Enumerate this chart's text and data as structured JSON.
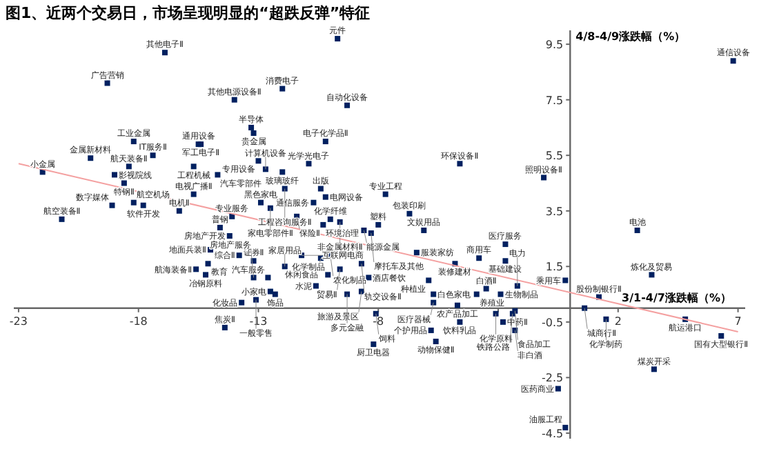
{
  "chart_data": {
    "type": "scatter",
    "title": "图1、近两个交易日，市场呈现明显的“超跌反弹”特征",
    "xlabel": "3/1-4/7涨跌幅（%）",
    "ylabel": "4/8-4/9涨跌幅（%）",
    "xlim": [
      -23.2,
      7.3
    ],
    "ylim": [
      -4.7,
      10.0
    ],
    "xticks": [
      -23,
      -18,
      -13,
      -8,
      {
        "value": -3,
        "label": null
      },
      2,
      7
    ],
    "yticks": [
      -4.5,
      -2.5,
      -0.5,
      1.5,
      3.5,
      5.5,
      7.5,
      9.5
    ],
    "series": [
      {
        "type": "scatter",
        "marker": "square",
        "color": "#002060",
        "x": [
          -16.9,
          -19.3,
          -14.0,
          -18.2,
          -15.5,
          -15.4,
          -20.0,
          -17.4,
          -18.4,
          -22.0,
          -19.0,
          -15.7,
          -14.7,
          -18.6,
          -15.7,
          -18.2,
          -17.8,
          -16.3,
          -21.2,
          -19.1,
          -14.1,
          -14.6,
          -13.3,
          -13.2,
          -9.7,
          -12.0,
          -9.3,
          -10.2,
          -4.6,
          -10.9,
          -12.7,
          -13.0,
          -12.0,
          -7.7,
          -10.2,
          -10.4,
          -10.7,
          -11.9,
          -12.9,
          -12.5,
          -6.7,
          -10.0,
          -11.4,
          -9.6,
          -8.0,
          -6.1,
          -10.3,
          -8.6,
          -8.3,
          -6.4,
          -3.8,
          -4.8,
          -10.0,
          -10.4,
          -8.7,
          -9.6,
          -10.1,
          -8.4,
          -10.6,
          -8.7,
          -9.3,
          -12.6,
          -12.5,
          -12.3,
          -13.1,
          -13.2,
          -11.9,
          -11.2,
          -5.9,
          -5.7,
          -3.9,
          -3.5,
          -2.9,
          -4.7,
          -5.7,
          -4.6,
          -3.1,
          -2.8,
          -8.1,
          -5.8,
          -5.6,
          -8.2,
          -14.2,
          -15.0,
          -13.8,
          -15.1,
          -15.6,
          -15.2,
          -13.2,
          -13.7,
          -14.4,
          6.8,
          -1.1,
          2.8,
          -2.7,
          -2.7,
          3.4,
          -0.2,
          1.2,
          -2.2,
          -2.3,
          0.6,
          1.5,
          4.8,
          6.3,
          3.5,
          -0.5,
          -0.2,
          -2.4,
          -2.3
        ],
        "values": [
          9.2,
          8.1,
          7.5,
          6.0,
          5.9,
          5.9,
          5.4,
          5.5,
          5.1,
          4.9,
          4.8,
          5.1,
          4.8,
          4.5,
          4.1,
          3.8,
          3.7,
          3.5,
          3.2,
          3.7,
          3.3,
          2.9,
          6.5,
          6.3,
          9.7,
          7.9,
          7.3,
          6.0,
          5.2,
          5.2,
          5.0,
          5.3,
          4.9,
          4.1,
          4.0,
          4.3,
          3.8,
          4.3,
          3.8,
          3.6,
          3.4,
          3.2,
          3.3,
          3.1,
          3.0,
          2.8,
          3.0,
          2.8,
          2.7,
          2.0,
          1.8,
          1.6,
          1.9,
          1.8,
          1.6,
          1.4,
          1.2,
          1.1,
          0.8,
          0.6,
          0.5,
          1.1,
          0.6,
          0.5,
          0.3,
          1.7,
          1.5,
          1.9,
          1.0,
          0.5,
          0.5,
          0.7,
          0.5,
          0.1,
          0.2,
          -0.5,
          -0.2,
          -0.5,
          -0.2,
          -0.8,
          -1.2,
          -1.3,
          2.6,
          2.1,
          1.9,
          1.6,
          1.4,
          1.2,
          1.1,
          0.2,
          -0.7,
          8.9,
          4.7,
          2.8,
          2.3,
          1.7,
          1.2,
          1.0,
          0.4,
          0.8,
          -0.1,
          0.0,
          -0.4,
          -0.4,
          -1.0,
          -2.2,
          -2.9,
          -4.3,
          -0.2,
          -0.8
        ]
      },
      {
        "type": "line",
        "color": "#f4a0a0",
        "x": [
          -23,
          7
        ],
        "values": [
          5.2,
          -0.85
        ]
      }
    ],
    "annotations": [
      {
        "text": "其他电子Ⅱ",
        "x": -16.9,
        "y": 9.2
      },
      {
        "text": "广告营销",
        "x": -19.3,
        "y": 8.1
      },
      {
        "text": "其他电源设备Ⅱ",
        "x": -14.0,
        "y": 7.5
      },
      {
        "text": "工业金属",
        "x": -18.2,
        "y": 6.0
      },
      {
        "text": "通用设备",
        "x": -15.5,
        "y": 5.9
      },
      {
        "text": "军工电子Ⅱ",
        "x": -15.4,
        "y": 5.9
      },
      {
        "text": "金属新材料",
        "x": -20.0,
        "y": 5.4
      },
      {
        "text": "IT服务Ⅱ",
        "x": -17.4,
        "y": 5.5
      },
      {
        "text": "航天装备Ⅱ",
        "x": -18.4,
        "y": 5.1
      },
      {
        "text": "小金属",
        "x": -22.0,
        "y": 4.9
      },
      {
        "text": "影视院线",
        "x": -19.0,
        "y": 4.8
      },
      {
        "text": "工程机械",
        "x": -15.7,
        "y": 5.1
      },
      {
        "text": "汽车零部件",
        "x": -14.7,
        "y": 4.8
      },
      {
        "text": "特钢Ⅱ",
        "x": -18.6,
        "y": 4.5
      },
      {
        "text": "电视广播Ⅱ",
        "x": -15.7,
        "y": 4.1
      },
      {
        "text": "航空机场",
        "x": -18.2,
        "y": 3.8
      },
      {
        "text": "软件开发",
        "x": -17.8,
        "y": 3.7
      },
      {
        "text": "电机Ⅱ",
        "x": -16.3,
        "y": 3.5
      },
      {
        "text": "航空装备Ⅱ",
        "x": -21.2,
        "y": 3.2
      },
      {
        "text": "数字媒体",
        "x": -19.1,
        "y": 3.7
      },
      {
        "text": "专业服务",
        "x": -14.1,
        "y": 3.3
      },
      {
        "text": "普钢",
        "x": -14.6,
        "y": 2.9
      },
      {
        "text": "半导体",
        "x": -13.3,
        "y": 6.5
      },
      {
        "text": "贵金属",
        "x": -13.2,
        "y": 6.3
      },
      {
        "text": "元件",
        "x": -9.7,
        "y": 9.7
      },
      {
        "text": "消费电子",
        "x": -12.0,
        "y": 7.9
      },
      {
        "text": "自动化设备",
        "x": -9.3,
        "y": 7.3
      },
      {
        "text": "电子化学品Ⅱ",
        "x": -10.2,
        "y": 6.0
      },
      {
        "text": "环保设备Ⅱ",
        "x": -4.6,
        "y": 5.2
      },
      {
        "text": "光学光电子",
        "x": -10.9,
        "y": 5.2
      },
      {
        "text": "计算机设备",
        "x": -12.7,
        "y": 5.0
      },
      {
        "text": "专用设备",
        "x": -13.0,
        "y": 5.3
      },
      {
        "text": "玻璃玻纤",
        "x": -12.0,
        "y": 4.9
      },
      {
        "text": "专业工程",
        "x": -7.7,
        "y": 4.1
      },
      {
        "text": "电网设备",
        "x": -10.2,
        "y": 4.0
      },
      {
        "text": "出版",
        "x": -10.4,
        "y": 4.3
      },
      {
        "text": "通信服务",
        "x": -10.7,
        "y": 3.8
      },
      {
        "text": "工程咨询服务Ⅱ",
        "x": -11.9,
        "y": 4.3
      },
      {
        "text": "黑色家电",
        "x": -12.9,
        "y": 3.8
      },
      {
        "text": "家电零部件Ⅱ",
        "x": -12.5,
        "y": 3.6
      },
      {
        "text": "包装印刷",
        "x": -6.7,
        "y": 3.4
      },
      {
        "text": "化学纤维",
        "x": -10.0,
        "y": 3.2
      },
      {
        "text": "保险Ⅱ",
        "x": -11.4,
        "y": 3.3
      },
      {
        "text": "非金属材料Ⅱ",
        "x": -9.6,
        "y": 3.1
      },
      {
        "text": "塑料",
        "x": -8.0,
        "y": 3.0
      },
      {
        "text": "文娱用品",
        "x": -6.1,
        "y": 2.8
      },
      {
        "text": "环境治理",
        "x": -10.3,
        "y": 3.0
      },
      {
        "text": "能源金属",
        "x": -8.6,
        "y": 2.8
      },
      {
        "text": "摩托车及其他",
        "x": -8.3,
        "y": 2.7
      },
      {
        "text": "服装家纺",
        "x": -6.4,
        "y": 2.0
      },
      {
        "text": "商用车",
        "x": -3.8,
        "y": 1.8
      },
      {
        "text": "装修建材",
        "x": -4.8,
        "y": 1.6
      },
      {
        "text": "农化制品",
        "x": -10.0,
        "y": 1.9
      },
      {
        "text": "休闲食品",
        "x": -10.4,
        "y": 1.8
      },
      {
        "text": "轨交设备Ⅱ",
        "x": -8.7,
        "y": 1.6
      },
      {
        "text": "贸易Ⅱ",
        "x": -9.6,
        "y": 1.4
      },
      {
        "text": "化学制品",
        "x": -10.1,
        "y": 1.2
      },
      {
        "text": "酒店餐饮",
        "x": -8.4,
        "y": 1.1
      },
      {
        "text": "水泥",
        "x": -10.6,
        "y": 0.8
      },
      {
        "text": "旅游及景区",
        "x": -8.7,
        "y": 0.6
      },
      {
        "text": "多元金融",
        "x": -9.3,
        "y": 0.5
      },
      {
        "text": "汽车服务",
        "x": -12.6,
        "y": 1.1
      },
      {
        "text": "小家电",
        "x": -12.5,
        "y": 0.6
      },
      {
        "text": "饰品",
        "x": -12.3,
        "y": 0.5
      },
      {
        "text": "一般零售",
        "x": -13.1,
        "y": 0.3
      },
      {
        "text": "证券Ⅱ",
        "x": -13.2,
        "y": 1.7
      },
      {
        "text": "家居用品",
        "x": -11.9,
        "y": 1.5
      },
      {
        "text": "互联网电商",
        "x": -11.2,
        "y": 1.9
      },
      {
        "text": "种植业",
        "x": -5.9,
        "y": 1.0
      },
      {
        "text": "白色家电",
        "x": -5.7,
        "y": 0.5
      },
      {
        "text": "养殖业",
        "x": -3.9,
        "y": 0.5
      },
      {
        "text": "白酒Ⅱ",
        "x": -3.5,
        "y": 0.7
      },
      {
        "text": "生物制品",
        "x": -2.9,
        "y": 0.5
      },
      {
        "text": "农产品加工",
        "x": -4.7,
        "y": 0.1
      },
      {
        "text": "医疗器械",
        "x": -5.7,
        "y": 0.2
      },
      {
        "text": "饮料乳品",
        "x": -4.6,
        "y": -0.5
      },
      {
        "text": "化学原料",
        "x": -3.1,
        "y": -0.2
      },
      {
        "text": "中药Ⅱ",
        "x": -2.8,
        "y": -0.5
      },
      {
        "text": "饲料",
        "x": -8.1,
        "y": -0.2
      },
      {
        "text": "个护用品",
        "x": -5.8,
        "y": -0.8
      },
      {
        "text": "动物保健Ⅱ",
        "x": -5.6,
        "y": -1.2
      },
      {
        "text": "厨卫电器",
        "x": -8.2,
        "y": -1.3
      },
      {
        "text": "房地产开发",
        "x": -14.2,
        "y": 2.6
      },
      {
        "text": "地面兵装Ⅱ",
        "x": -15.0,
        "y": 2.1
      },
      {
        "text": "综合Ⅱ",
        "x": -13.8,
        "y": 1.9
      },
      {
        "text": "教育",
        "x": -15.1,
        "y": 1.6
      },
      {
        "text": "航海装备Ⅱ",
        "x": -15.6,
        "y": 1.4
      },
      {
        "text": "冶钢原料",
        "x": -15.2,
        "y": 1.2
      },
      {
        "text": "房地产服务",
        "x": -13.2,
        "y": 1.1
      },
      {
        "text": "化妆品",
        "x": -13.7,
        "y": 0.2
      },
      {
        "text": "焦炭Ⅱ",
        "x": -14.4,
        "y": -0.7
      },
      {
        "text": "通信设备",
        "x": 6.8,
        "y": 8.9
      },
      {
        "text": "照明设备Ⅱ",
        "x": -1.1,
        "y": 4.7
      },
      {
        "text": "电池",
        "x": 2.8,
        "y": 2.8
      },
      {
        "text": "医疗服务",
        "x": -2.7,
        "y": 2.3
      },
      {
        "text": "基础建设",
        "x": -2.7,
        "y": 1.7
      },
      {
        "text": "炼化及贸易",
        "x": 3.4,
        "y": 1.2
      },
      {
        "text": "乘用车",
        "x": -0.2,
        "y": 1.0
      },
      {
        "text": "股份制银行Ⅱ",
        "x": 1.2,
        "y": 0.4
      },
      {
        "text": "电力",
        "x": -2.2,
        "y": 0.8
      },
      {
        "text": "食品加工",
        "x": -2.3,
        "y": -0.1
      },
      {
        "text": "城商行Ⅱ",
        "x": 0.6,
        "y": 0.0
      },
      {
        "text": "化学制药",
        "x": 1.5,
        "y": -0.4
      },
      {
        "text": "航运港口",
        "x": 4.8,
        "y": -0.4
      },
      {
        "text": "国有大型银行Ⅱ",
        "x": 6.3,
        "y": -1.0
      },
      {
        "text": "煤炭开采",
        "x": 3.5,
        "y": -2.2
      },
      {
        "text": "医药商业",
        "x": -0.5,
        "y": -2.9
      },
      {
        "text": "油服工程",
        "x": -0.2,
        "y": -4.3
      },
      {
        "text": "铁路公路",
        "x": -2.4,
        "y": -0.2
      },
      {
        "text": "非白酒",
        "x": -2.3,
        "y": -0.8
      }
    ]
  }
}
